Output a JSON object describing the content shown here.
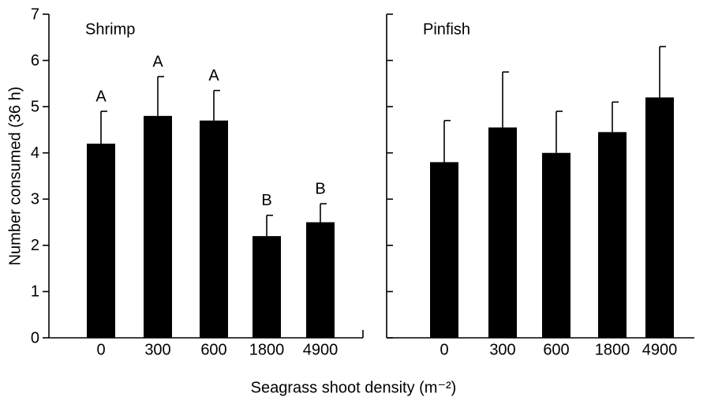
{
  "xlabel": "Seagrass shoot density (m⁻²)",
  "chart_data": [
    {
      "type": "bar",
      "title": "Shrimp",
      "ylabel": "Number consumed (36 h)",
      "categories": [
        "0",
        "300",
        "600",
        "1800",
        "4900"
      ],
      "values": [
        4.2,
        4.8,
        4.7,
        2.2,
        2.5
      ],
      "errors": [
        0.7,
        0.85,
        0.65,
        0.45,
        0.4
      ],
      "annotations": [
        "A",
        "A",
        "A",
        "B",
        "B"
      ],
      "color": "#000000",
      "ylim": [
        0,
        7
      ],
      "yticks": [
        0,
        1,
        2,
        3,
        4,
        5,
        6,
        7
      ],
      "ytick_labels": true
    },
    {
      "type": "bar",
      "title": "Pinfish",
      "categories": [
        "0",
        "300",
        "600",
        "1800",
        "4900"
      ],
      "values": [
        3.8,
        4.55,
        4.0,
        4.45,
        5.2
      ],
      "errors": [
        0.9,
        1.2,
        0.9,
        0.65,
        1.1
      ],
      "color": "#000000",
      "ylim": [
        0,
        7
      ],
      "yticks": [
        0,
        1,
        2,
        3,
        4,
        5,
        6,
        7
      ],
      "ytick_labels": false
    }
  ]
}
